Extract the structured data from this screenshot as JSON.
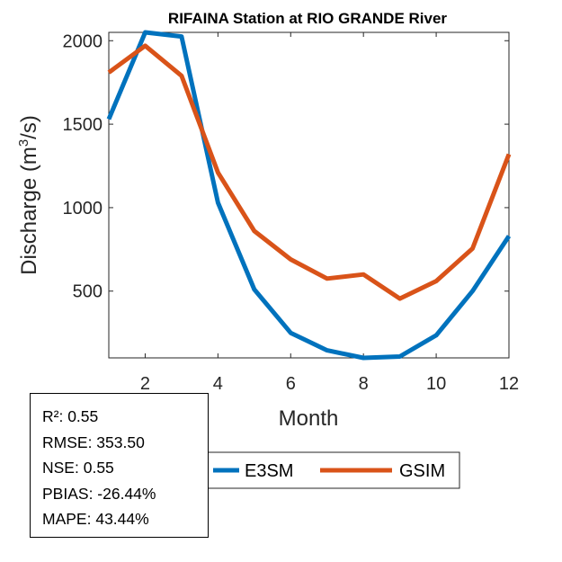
{
  "chart_data": {
    "type": "line",
    "title": "RIFAINA  Station at  RIO GRANDE  River",
    "xlabel": "Month",
    "ylabel": "Discharge (m",
    "ylabel_sup": "3",
    "ylabel_end": "/s)",
    "xlim": [
      1,
      12
    ],
    "ylim": [
      100,
      2050
    ],
    "xticks": [
      2,
      4,
      6,
      8,
      10,
      12
    ],
    "yticks": [
      500,
      1000,
      1500,
      2000
    ],
    "grid": false,
    "x": [
      1,
      2,
      3,
      4,
      5,
      6,
      7,
      8,
      9,
      10,
      11,
      12
    ],
    "series": [
      {
        "name": "E3SM",
        "color": "#0072BD",
        "values": [
          1530,
          2050,
          2025,
          1030,
          510,
          250,
          145,
          100,
          108,
          235,
          500,
          830
        ]
      },
      {
        "name": "GSIM",
        "color": "#D95319",
        "values": [
          1810,
          1970,
          1790,
          1210,
          860,
          690,
          575,
          600,
          455,
          560,
          755,
          1320
        ]
      }
    ],
    "legend": {
      "placement": "bottom-center",
      "entries": [
        "E3SM",
        "GSIM"
      ]
    },
    "stats": [
      {
        "label": "R²",
        "value": "0.55"
      },
      {
        "label": "RMSE",
        "value": "353.50"
      },
      {
        "label": "NSE",
        "value": "0.55"
      },
      {
        "label": "PBIAS",
        "value": "-26.44%"
      },
      {
        "label": "MAPE",
        "value": "43.44%"
      }
    ]
  }
}
